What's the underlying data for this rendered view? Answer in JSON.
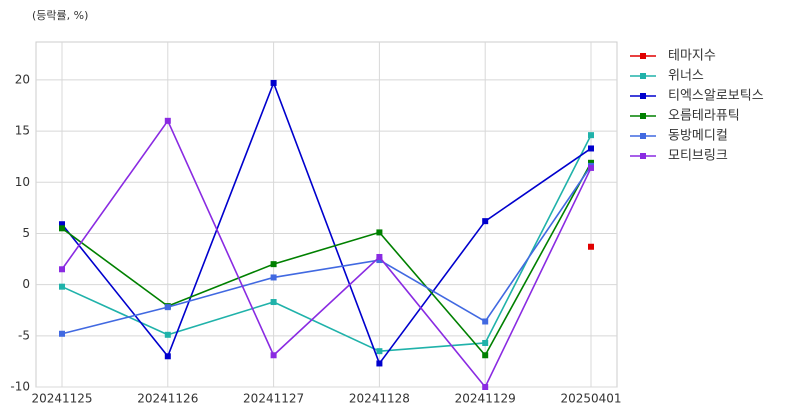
{
  "chart_data": {
    "type": "line",
    "y_label": "(등락률, %)",
    "categories": [
      "20241125",
      "20241126",
      "20241127",
      "20241128",
      "20241129",
      "20250401"
    ],
    "series": [
      {
        "name": "테마지수",
        "color": "#e00000",
        "values": [
          null,
          null,
          null,
          null,
          null,
          3.7
        ]
      },
      {
        "name": "위너스",
        "color": "#20b2aa",
        "values": [
          -0.2,
          -4.9,
          -1.7,
          -6.5,
          -5.7,
          14.6
        ]
      },
      {
        "name": "티엑스알로보틱스",
        "color": "#0000cd",
        "values": [
          5.9,
          -7.0,
          19.7,
          -7.7,
          6.2,
          13.3
        ]
      },
      {
        "name": "오름테라퓨틱",
        "color": "#008000",
        "values": [
          5.5,
          -2.1,
          2.0,
          5.1,
          -6.9,
          11.9
        ]
      },
      {
        "name": "동방메디컬",
        "color": "#4169e1",
        "values": [
          -4.8,
          -2.2,
          0.7,
          2.4,
          -3.6,
          11.6
        ]
      },
      {
        "name": "모티브링크",
        "color": "#8a2be2",
        "values": [
          1.5,
          16.0,
          -6.9,
          2.7,
          -10.0,
          11.4
        ]
      }
    ],
    "ylim": [
      -10,
      23.7
    ],
    "yticks": [
      -10,
      -5,
      0,
      5,
      10,
      15,
      20
    ],
    "grid": true,
    "legend": "right"
  }
}
